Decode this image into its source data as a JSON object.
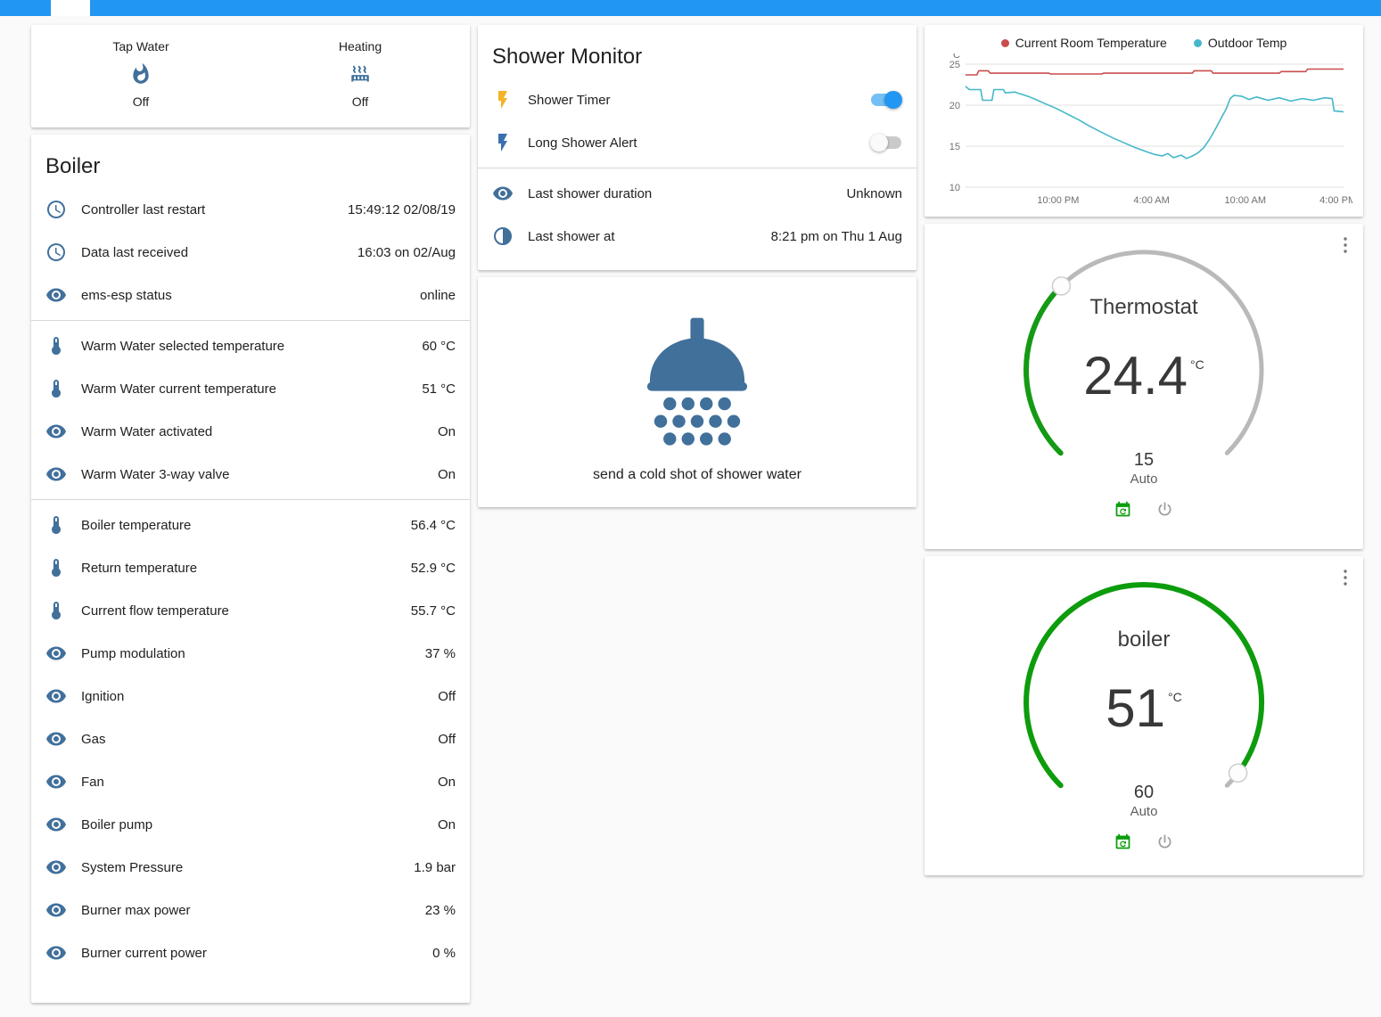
{
  "topbar": {
    "color": "#2196f3"
  },
  "status_card": {
    "items": [
      {
        "icon": "fire-icon",
        "label": "Tap Water",
        "state": "Off"
      },
      {
        "icon": "radiator-icon",
        "label": "Heating",
        "state": "Off"
      }
    ]
  },
  "boiler_card": {
    "title": "Boiler",
    "rows": [
      {
        "icon": "timer-icon",
        "label": "Controller last restart",
        "value": "15:49:12 02/08/19"
      },
      {
        "icon": "timer-icon",
        "label": "Data last received",
        "value": "16:03 on 02/Aug"
      },
      {
        "icon": "eye-icon",
        "label": "ems-esp status",
        "value": "online",
        "divider_after": true
      },
      {
        "icon": "thermometer-icon",
        "label": "Warm Water selected temperature",
        "value": "60 °C"
      },
      {
        "icon": "thermometer-icon",
        "label": "Warm Water current temperature",
        "value": "51 °C"
      },
      {
        "icon": "eye-icon",
        "label": "Warm Water activated",
        "value": "On"
      },
      {
        "icon": "eye-icon",
        "label": "Warm Water 3-way valve",
        "value": "On",
        "divider_after": true
      },
      {
        "icon": "thermometer-icon",
        "label": "Boiler temperature",
        "value": "56.4 °C"
      },
      {
        "icon": "thermometer-icon",
        "label": "Return temperature",
        "value": "52.9 °C"
      },
      {
        "icon": "thermometer-icon",
        "label": "Current flow temperature",
        "value": "55.7 °C"
      },
      {
        "icon": "eye-icon",
        "label": "Pump modulation",
        "value": "37 %"
      },
      {
        "icon": "eye-icon",
        "label": "Ignition",
        "value": "Off"
      },
      {
        "icon": "eye-icon",
        "label": "Gas",
        "value": "Off"
      },
      {
        "icon": "eye-icon",
        "label": "Fan",
        "value": "On"
      },
      {
        "icon": "eye-icon",
        "label": "Boiler pump",
        "value": "On"
      },
      {
        "icon": "eye-icon",
        "label": "System Pressure",
        "value": "1.9 bar"
      },
      {
        "icon": "eye-icon",
        "label": "Burner max power",
        "value": "23 %"
      },
      {
        "icon": "eye-icon",
        "label": "Burner current power",
        "value": "0 %"
      }
    ]
  },
  "shower_monitor": {
    "title": "Shower Monitor",
    "toggles": [
      {
        "icon": "flash-icon",
        "icon_color": "#f4b32a",
        "label": "Shower Timer",
        "on": true
      },
      {
        "icon": "flash-icon",
        "icon_color": "#3a6fb0",
        "label": "Long Shower Alert",
        "on": false
      }
    ],
    "info": [
      {
        "icon": "eye-icon",
        "label": "Last shower duration",
        "value": "Unknown"
      },
      {
        "icon": "half-moon-icon",
        "label": "Last shower at",
        "value": "8:21 pm on Thu 1 Aug"
      }
    ]
  },
  "shower_action": {
    "icon": "shower-head-icon",
    "label": "send a cold shot of shower water"
  },
  "chart_data": {
    "type": "line",
    "unit": "°C",
    "ylim": [
      10,
      25
    ],
    "yticks": [
      10,
      15,
      20,
      25
    ],
    "grid": "horizontal",
    "legend_position": "top",
    "x_ticks": [
      {
        "label": "10:00 PM",
        "f": 0.245
      },
      {
        "label": "4:00 AM",
        "f": 0.492
      },
      {
        "label": "10:00 AM",
        "f": 0.74
      },
      {
        "label": "4:00 PM",
        "f": 0.985
      }
    ],
    "series": [
      {
        "name": "Current Room Temperature",
        "color": "#c94d4d",
        "points": [
          [
            0,
            23.7
          ],
          [
            0.03,
            23.7
          ],
          [
            0.035,
            24.2
          ],
          [
            0.06,
            24.2
          ],
          [
            0.065,
            23.9
          ],
          [
            0.22,
            23.9
          ],
          [
            0.225,
            23.8
          ],
          [
            0.36,
            23.8
          ],
          [
            0.365,
            23.9
          ],
          [
            0.6,
            23.9
          ],
          [
            0.605,
            24.2
          ],
          [
            0.65,
            24.2
          ],
          [
            0.655,
            23.9
          ],
          [
            0.83,
            23.9
          ],
          [
            0.835,
            24.1
          ],
          [
            0.9,
            24.1
          ],
          [
            0.905,
            24.4
          ],
          [
            1,
            24.4
          ]
        ]
      },
      {
        "name": "Outdoor Temp",
        "color": "#45b7c8",
        "points": [
          [
            0,
            22.3
          ],
          [
            0.01,
            21.9
          ],
          [
            0.04,
            21.9
          ],
          [
            0.045,
            20.6
          ],
          [
            0.07,
            20.6
          ],
          [
            0.075,
            21.9
          ],
          [
            0.1,
            21.9
          ],
          [
            0.105,
            21.5
          ],
          [
            0.13,
            21.6
          ],
          [
            0.15,
            21.3
          ],
          [
            0.17,
            21
          ],
          [
            0.19,
            20.6
          ],
          [
            0.21,
            20.2
          ],
          [
            0.24,
            19.6
          ],
          [
            0.27,
            18.9
          ],
          [
            0.3,
            18.2
          ],
          [
            0.33,
            17.4
          ],
          [
            0.36,
            16.7
          ],
          [
            0.39,
            16
          ],
          [
            0.42,
            15.4
          ],
          [
            0.45,
            14.8
          ],
          [
            0.48,
            14.3
          ],
          [
            0.5,
            14
          ],
          [
            0.52,
            13.8
          ],
          [
            0.535,
            14.1
          ],
          [
            0.55,
            13.6
          ],
          [
            0.57,
            13.9
          ],
          [
            0.585,
            13.5
          ],
          [
            0.6,
            13.8
          ],
          [
            0.615,
            14.2
          ],
          [
            0.63,
            14.8
          ],
          [
            0.645,
            15.8
          ],
          [
            0.66,
            17
          ],
          [
            0.675,
            18.3
          ],
          [
            0.69,
            19.6
          ],
          [
            0.7,
            20.8
          ],
          [
            0.71,
            21.2
          ],
          [
            0.73,
            21.1
          ],
          [
            0.75,
            20.7
          ],
          [
            0.77,
            21
          ],
          [
            0.8,
            20.6
          ],
          [
            0.83,
            20.9
          ],
          [
            0.86,
            20.5
          ],
          [
            0.89,
            20.8
          ],
          [
            0.92,
            20.6
          ],
          [
            0.95,
            20.9
          ],
          [
            0.97,
            20.8
          ],
          [
            0.975,
            19.3
          ],
          [
            1,
            19.2
          ]
        ]
      }
    ]
  },
  "thermostat_gauge": {
    "title": "Thermostat",
    "value": "24.4",
    "unit": "°C",
    "setpoint": "15",
    "mode": "Auto",
    "arc_color": "#149a14"
  },
  "boiler_gauge": {
    "title": "boiler",
    "value": "51",
    "unit": "°C",
    "setpoint": "60",
    "mode": "Auto",
    "arc_color": "#0c9c0c"
  }
}
